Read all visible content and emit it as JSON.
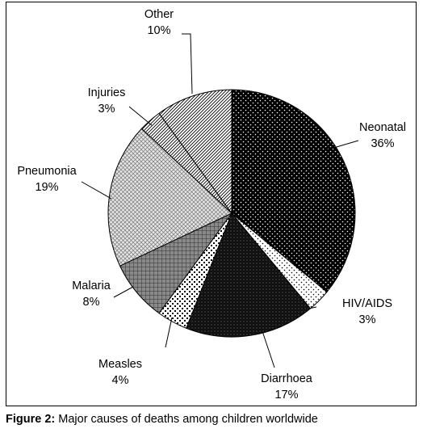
{
  "caption": {
    "label": "Figure 2:",
    "text": "Major causes of deaths among children worldwide"
  },
  "chart_data": {
    "type": "pie",
    "slices": [
      {
        "name": "Neonatal",
        "value": 36,
        "label": "36%",
        "pattern": "dots-white-on-black"
      },
      {
        "name": "HIV/AIDS",
        "value": 3,
        "label": "3%",
        "pattern": "sparse-dots"
      },
      {
        "name": "Diarrhoea",
        "value": 17,
        "label": "17%",
        "pattern": "dense-dark-dots"
      },
      {
        "name": "Measles",
        "value": 4,
        "label": "4%",
        "pattern": "checker-dots"
      },
      {
        "name": "Malaria",
        "value": 8,
        "label": "8%",
        "pattern": "gray-grid"
      },
      {
        "name": "Pneumonia",
        "value": 19,
        "label": "19%",
        "pattern": "light-crosshatch"
      },
      {
        "name": "Injuries",
        "value": 3,
        "label": "3%",
        "pattern": "diagonal-lines"
      },
      {
        "name": "Other",
        "value": 10,
        "label": "10%",
        "pattern": "diagonal-lines"
      }
    ]
  }
}
